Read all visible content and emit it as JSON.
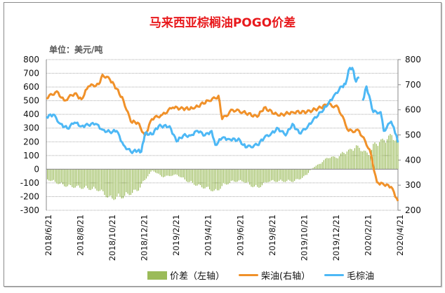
{
  "chart_data": {
    "type": "bar+line",
    "title": "马来西亚棕榈油POGO价差",
    "unit_label": "单位：美元/吨",
    "x_tick_labels": [
      "2018/6/21",
      "2018/8/21",
      "2018/10/21",
      "2018/12/21",
      "2019/2/21",
      "2019/4/21",
      "2019/6/21",
      "2019/8/21",
      "2019/10/21",
      "2019/12/21",
      "2020/2/21",
      "2020/4/21"
    ],
    "x_range": [
      "2018-06-21",
      "2020-04-21"
    ],
    "y_left": {
      "range": [
        -300,
        800
      ],
      "ticks": [
        "800",
        "700",
        "600",
        "500",
        "400",
        "300",
        "200",
        "100",
        "0",
        "-100",
        "-200",
        "-300"
      ]
    },
    "y_right": {
      "range": [
        200,
        800
      ],
      "ticks": [
        "800",
        "700",
        "600",
        "500",
        "400",
        "300",
        "200"
      ]
    },
    "grid": true,
    "legend_position": "bottom",
    "colors": {
      "spread": "#9bbb59",
      "diesel": "#f0912a",
      "cpo": "#4db8f5",
      "title": "#e8191c"
    },
    "series": [
      {
        "name": "价差（左轴）",
        "kind": "bar",
        "axis": "left",
        "points": [
          [
            "2018-06-21",
            -77
          ],
          [
            "2018-07-25",
            -128
          ],
          [
            "2018-08-27",
            -145
          ],
          [
            "2018-09-29",
            -162
          ],
          [
            "2018-10-20",
            -230
          ],
          [
            "2018-11-15",
            -213
          ],
          [
            "2018-12-12",
            -162
          ],
          [
            "2018-12-26",
            -77
          ],
          [
            "2019-01-08",
            -9
          ],
          [
            "2019-01-28",
            -60
          ],
          [
            "2019-02-24",
            -43
          ],
          [
            "2019-03-16",
            -94
          ],
          [
            "2019-04-05",
            -128
          ],
          [
            "2019-05-02",
            -162
          ],
          [
            "2019-05-09",
            -179
          ],
          [
            "2019-05-22",
            -128
          ],
          [
            "2019-06-11",
            -94
          ],
          [
            "2019-07-01",
            -94
          ],
          [
            "2019-07-15",
            -128
          ],
          [
            "2019-07-28",
            -145
          ],
          [
            "2019-08-17",
            -94
          ],
          [
            "2019-09-06",
            -94
          ],
          [
            "2019-10-03",
            -94
          ],
          [
            "2019-10-16",
            -77
          ],
          [
            "2019-10-30",
            -43
          ],
          [
            "2019-11-06",
            0
          ],
          [
            "2019-11-26",
            51
          ],
          [
            "2019-12-09",
            94
          ],
          [
            "2019-12-29",
            94
          ],
          [
            "2020-01-05",
            128
          ],
          [
            "2020-01-18",
            145
          ],
          [
            "2020-02-01",
            179
          ],
          [
            "2020-02-14",
            145
          ],
          [
            "2020-02-27",
            111
          ],
          [
            "2020-03-05",
            196
          ],
          [
            "2020-03-25",
            230
          ],
          [
            "2020-04-08",
            264
          ],
          [
            "2020-04-21",
            213
          ]
        ]
      },
      {
        "name": "柴油(右轴）",
        "kind": "line",
        "axis": "right",
        "points": [
          [
            "2018-06-21",
            646
          ],
          [
            "2018-07-11",
            674
          ],
          [
            "2018-07-25",
            637
          ],
          [
            "2018-08-14",
            665
          ],
          [
            "2018-08-27",
            642
          ],
          [
            "2018-09-09",
            693
          ],
          [
            "2018-09-29",
            702
          ],
          [
            "2018-10-06",
            740
          ],
          [
            "2018-10-20",
            721
          ],
          [
            "2018-11-02",
            684
          ],
          [
            "2018-11-15",
            637
          ],
          [
            "2018-11-29",
            553
          ],
          [
            "2018-12-12",
            549
          ],
          [
            "2018-12-26",
            498
          ],
          [
            "2019-01-08",
            563
          ],
          [
            "2019-01-28",
            581
          ],
          [
            "2019-02-17",
            609
          ],
          [
            "2019-03-03",
            605
          ],
          [
            "2019-03-29",
            605
          ],
          [
            "2019-04-25",
            637
          ],
          [
            "2019-05-09",
            646
          ],
          [
            "2019-05-15",
            656
          ],
          [
            "2019-05-22",
            563
          ],
          [
            "2019-06-11",
            600
          ],
          [
            "2019-07-01",
            591
          ],
          [
            "2019-07-28",
            572
          ],
          [
            "2019-08-10",
            609
          ],
          [
            "2019-09-06",
            577
          ],
          [
            "2019-10-03",
            591
          ],
          [
            "2019-10-30",
            591
          ],
          [
            "2019-11-26",
            609
          ],
          [
            "2019-12-09",
            623
          ],
          [
            "2019-12-29",
            609
          ],
          [
            "2020-01-18",
            516
          ],
          [
            "2020-02-07",
            516
          ],
          [
            "2020-02-27",
            442
          ],
          [
            "2020-03-12",
            312
          ],
          [
            "2020-03-25",
            302
          ],
          [
            "2020-04-08",
            293
          ],
          [
            "2020-04-21",
            237
          ]
        ]
      },
      {
        "name": "毛棕油",
        "kind": "line",
        "axis": "right",
        "points": [
          [
            "2018-06-21",
            572
          ],
          [
            "2018-07-04",
            581
          ],
          [
            "2018-07-18",
            544
          ],
          [
            "2018-07-31",
            526
          ],
          [
            "2018-08-14",
            549
          ],
          [
            "2018-08-27",
            535
          ],
          [
            "2018-09-09",
            540
          ],
          [
            "2018-09-23",
            544
          ],
          [
            "2018-10-06",
            521
          ],
          [
            "2018-10-20",
            512
          ],
          [
            "2018-11-02",
            516
          ],
          [
            "2018-11-15",
            460
          ],
          [
            "2018-11-29",
            433
          ],
          [
            "2018-12-12",
            437
          ],
          [
            "2018-12-19",
            433
          ],
          [
            "2018-12-26",
            507
          ],
          [
            "2019-01-08",
            502
          ],
          [
            "2019-01-21",
            535
          ],
          [
            "2019-02-11",
            535
          ],
          [
            "2019-02-24",
            474
          ],
          [
            "2019-03-09",
            498
          ],
          [
            "2019-03-23",
            498
          ],
          [
            "2019-04-05",
            516
          ],
          [
            "2019-04-19",
            498
          ],
          [
            "2019-05-02",
            516
          ],
          [
            "2019-05-09",
            460
          ],
          [
            "2019-05-22",
            488
          ],
          [
            "2019-06-04",
            484
          ],
          [
            "2019-06-25",
            479
          ],
          [
            "2019-07-01",
            460
          ],
          [
            "2019-07-08",
            451
          ],
          [
            "2019-07-28",
            460
          ],
          [
            "2019-08-10",
            488
          ],
          [
            "2019-08-24",
            507
          ],
          [
            "2019-09-06",
            526
          ],
          [
            "2019-09-20",
            498
          ],
          [
            "2019-10-03",
            544
          ],
          [
            "2019-10-16",
            507
          ],
          [
            "2019-10-30",
            526
          ],
          [
            "2019-11-12",
            563
          ],
          [
            "2019-11-26",
            591
          ],
          [
            "2019-12-09",
            619
          ],
          [
            "2019-12-22",
            660
          ],
          [
            "2020-01-05",
            693
          ],
          [
            "2020-01-12",
            702
          ],
          [
            "2020-01-18",
            758
          ],
          [
            "2020-01-25",
            767
          ],
          [
            "2020-02-01",
            712
          ],
          [
            "2020-02-07",
            730
          ],
          [
            "2020-02-10",
            null
          ],
          [
            "2020-02-14",
            637
          ],
          [
            "2020-02-21",
            693
          ],
          [
            "2020-03-05",
            591
          ],
          [
            "2020-03-19",
            591
          ],
          [
            "2020-03-25",
            516
          ],
          [
            "2020-04-08",
            553
          ],
          [
            "2020-04-18",
            498
          ],
          [
            "2020-04-21",
            470
          ]
        ]
      }
    ]
  }
}
